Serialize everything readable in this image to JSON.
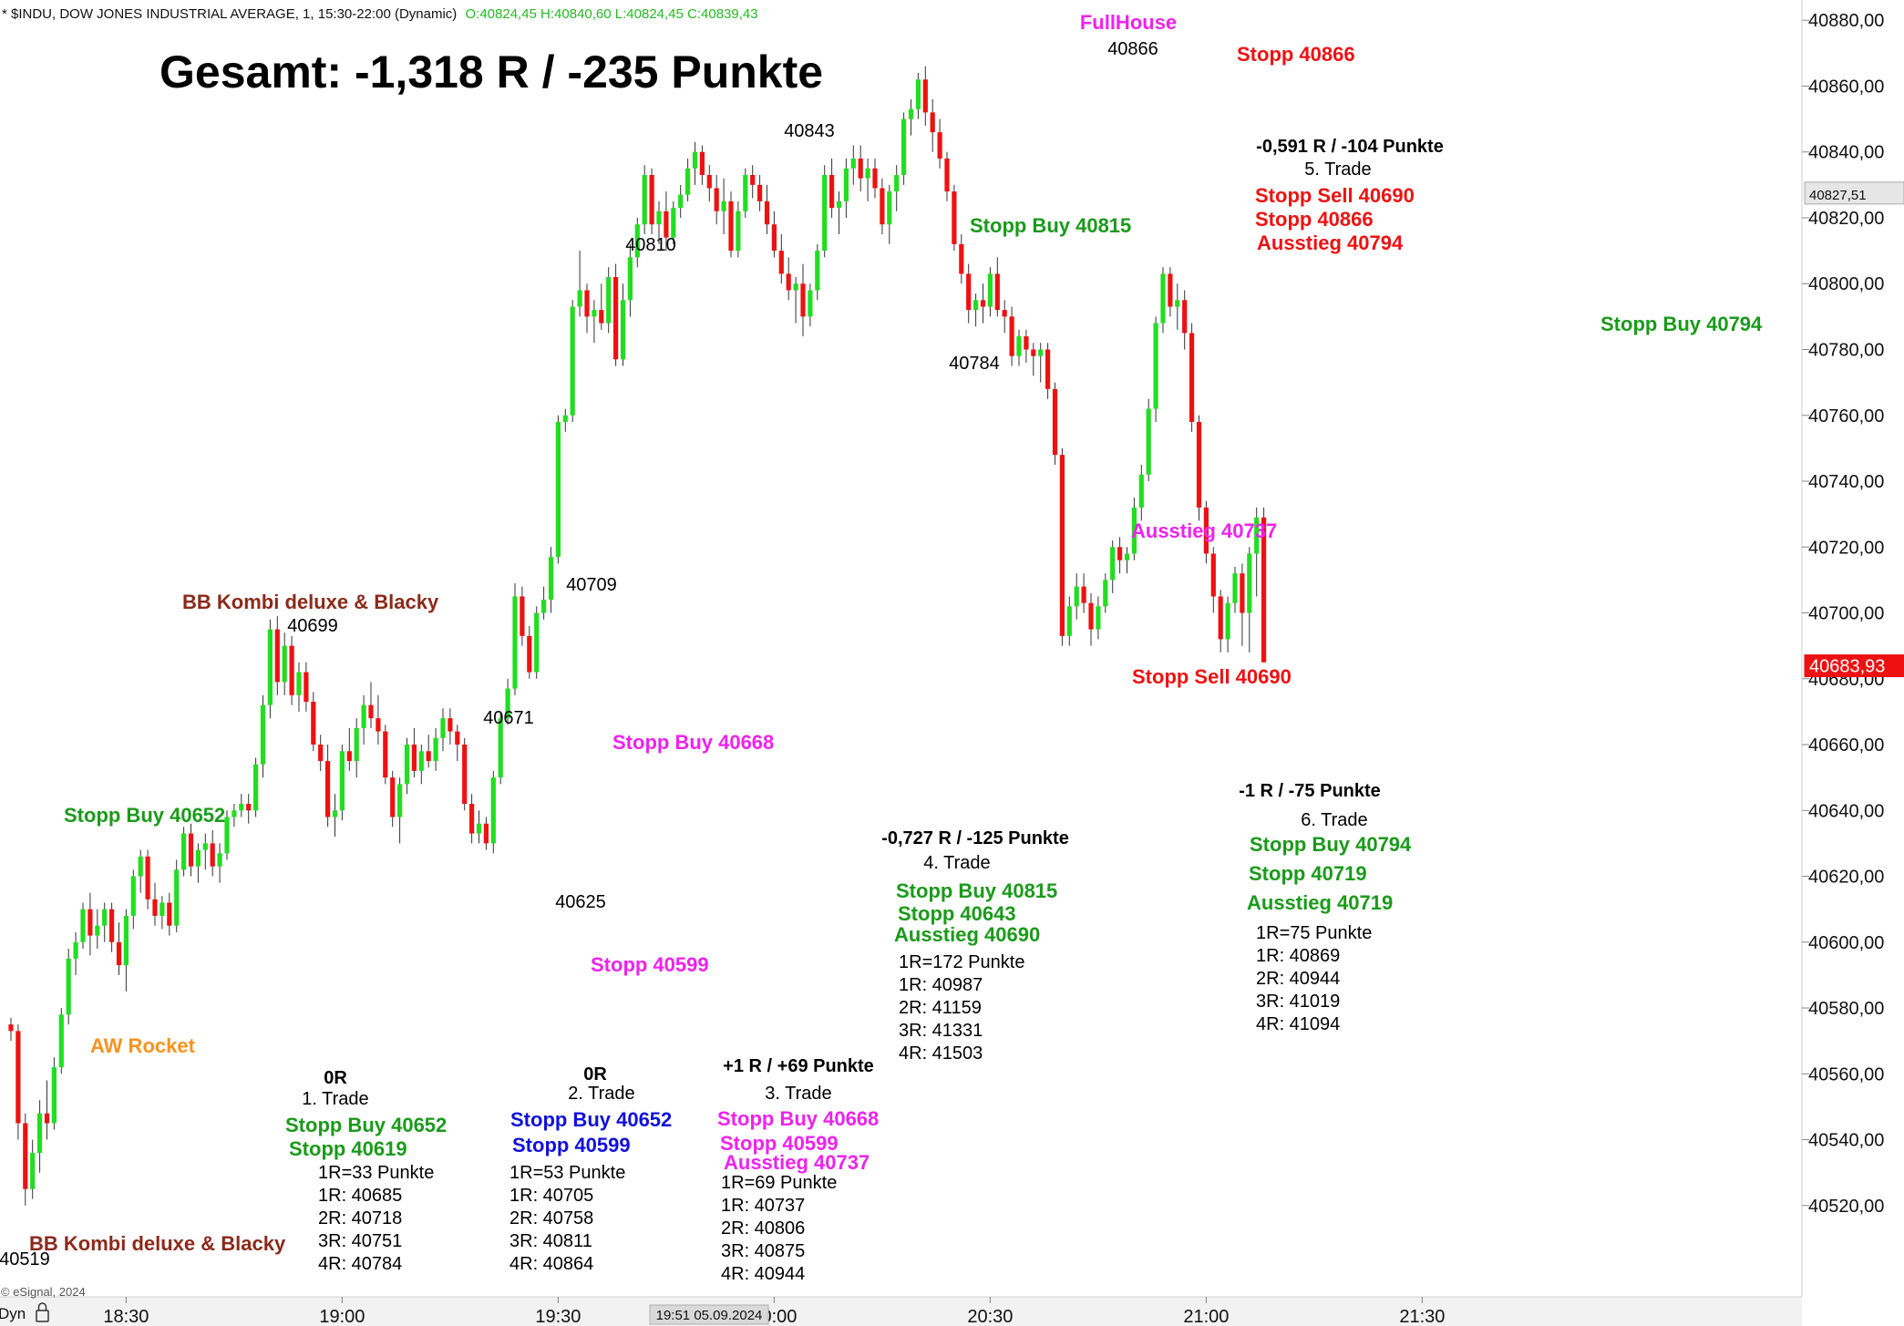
{
  "header": {
    "symbol_line": "* $INDU, DOW JONES INDUSTRIAL AVERAGE, 1, 15:30-22:00 (Dynamic)",
    "ohlc_line": "O:40824,45 H:40840,60 L:40824,45 C:40839,43"
  },
  "footer": {
    "copyright": "© eSignal, 2024",
    "dyn_label": "Dyn",
    "crosshair_time": "19:51 05.09.2024"
  },
  "colors": {
    "up": "#22dd22",
    "down": "#ee1111",
    "green_text": "#1a9a1a",
    "red_text": "#ee1111",
    "magenta": "#ee22ee",
    "blue": "#1010dd",
    "brown": "#8b2a1a",
    "orange": "#f7931e",
    "price_tag": "#ee1111"
  },
  "chart_data": {
    "type": "candlestick",
    "y_axis": {
      "min": 40505,
      "max": 40882,
      "ticks": [
        40520,
        40540,
        40560,
        40580,
        40600,
        40620,
        40640,
        40660,
        40680,
        40700,
        40720,
        40740,
        40760,
        40780,
        40800,
        40820,
        40840,
        40860,
        40880
      ],
      "tick_labels": [
        "40520,00",
        "40540,00",
        "40560,00",
        "40580,00",
        "40600,00",
        "40620,00",
        "40640,00",
        "40660,00",
        "40680,00",
        "40700,00",
        "40720,00",
        "40740,00",
        "40760,00",
        "40780,00",
        "40800,00",
        "40820,00",
        "40840,00",
        "40860,00",
        "40880,00"
      ]
    },
    "x_axis": {
      "tick_labels": [
        "18:30",
        "19:00",
        "19:30",
        "20:00",
        "20:30",
        "21:00",
        "21:30"
      ],
      "tick_minutes": [
        0,
        30,
        60,
        90,
        120,
        150,
        180
      ],
      "start_minute": -16
    },
    "price_tags": [
      {
        "value": 40827.51,
        "label": "40827,51",
        "style": "gray"
      },
      {
        "value": 40683.93,
        "label": "40683,93",
        "style": "red"
      }
    ],
    "candles": [
      [
        40575,
        40577,
        40570,
        40573
      ],
      [
        40573,
        40575,
        40540,
        40545
      ],
      [
        40545,
        40548,
        40520,
        40525
      ],
      [
        40525,
        40540,
        40522,
        40536
      ],
      [
        40536,
        40552,
        40530,
        40548
      ],
      [
        40548,
        40558,
        40540,
        40545
      ],
      [
        40545,
        40565,
        40543,
        40562
      ],
      [
        40562,
        40580,
        40560,
        40578
      ],
      [
        40578,
        40598,
        40575,
        40595
      ],
      [
        40595,
        40603,
        40590,
        40600
      ],
      [
        40600,
        40612,
        40598,
        40610
      ],
      [
        40610,
        40615,
        40596,
        40602
      ],
      [
        40602,
        40610,
        40598,
        40605
      ],
      [
        40605,
        40612,
        40600,
        40610
      ],
      [
        40610,
        40612,
        40597,
        40600
      ],
      [
        40600,
        40606,
        40590,
        40593
      ],
      [
        40593,
        40610,
        40585,
        40608
      ],
      [
        40608,
        40622,
        40604,
        40620
      ],
      [
        40620,
        40628,
        40615,
        40626
      ],
      [
        40626,
        40628,
        40610,
        40613
      ],
      [
        40613,
        40618,
        40605,
        40608
      ],
      [
        40608,
        40614,
        40604,
        40612
      ],
      [
        40612,
        40615,
        40602,
        40605
      ],
      [
        40605,
        40625,
        40603,
        40622
      ],
      [
        40622,
        40635,
        40620,
        40633
      ],
      [
        40633,
        40636,
        40620,
        40623
      ],
      [
        40623,
        40630,
        40618,
        40628
      ],
      [
        40628,
        40633,
        40622,
        40630
      ],
      [
        40630,
        40634,
        40620,
        40623
      ],
      [
        40623,
        40630,
        40618,
        40627
      ],
      [
        40627,
        40640,
        40625,
        40638
      ],
      [
        40638,
        40642,
        40635,
        40640
      ],
      [
        40640,
        40645,
        40638,
        40642
      ],
      [
        40642,
        40645,
        40636,
        40640
      ],
      [
        40640,
        40656,
        40638,
        40654
      ],
      [
        40654,
        40675,
        40650,
        40672
      ],
      [
        40672,
        40698,
        40668,
        40695
      ],
      [
        40695,
        40699,
        40675,
        40679
      ],
      [
        40679,
        40694,
        40675,
        40690
      ],
      [
        40690,
        40693,
        40672,
        40675
      ],
      [
        40675,
        40685,
        40670,
        40682
      ],
      [
        40682,
        40685,
        40670,
        40673
      ],
      [
        40673,
        40676,
        40658,
        40660
      ],
      [
        40660,
        40663,
        40652,
        40655
      ],
      [
        40655,
        40660,
        40635,
        40638
      ],
      [
        40638,
        40645,
        40632,
        40640
      ],
      [
        40640,
        40660,
        40637,
        40658
      ],
      [
        40658,
        40665,
        40652,
        40655
      ],
      [
        40655,
        40668,
        40650,
        40665
      ],
      [
        40665,
        40675,
        40660,
        40672
      ],
      [
        40672,
        40679,
        40665,
        40668
      ],
      [
        40668,
        40675,
        40660,
        40664
      ],
      [
        40664,
        40666,
        40648,
        40650
      ],
      [
        40650,
        40652,
        40635,
        40638
      ],
      [
        40638,
        40650,
        40630,
        40648
      ],
      [
        40648,
        40662,
        40645,
        40660
      ],
      [
        40660,
        40665,
        40650,
        40652
      ],
      [
        40652,
        40660,
        40648,
        40658
      ],
      [
        40658,
        40663,
        40653,
        40655
      ],
      [
        40655,
        40665,
        40652,
        40662
      ],
      [
        40662,
        40671,
        40658,
        40668
      ],
      [
        40668,
        40671,
        40660,
        40664
      ],
      [
        40664,
        40666,
        40655,
        40660
      ],
      [
        40660,
        40662,
        40640,
        40642
      ],
      [
        40642,
        40645,
        40630,
        40633
      ],
      [
        40633,
        40640,
        40630,
        40636
      ],
      [
        40636,
        40638,
        40628,
        40630
      ],
      [
        40630,
        40652,
        40627,
        40650
      ],
      [
        40650,
        40670,
        40648,
        40668
      ],
      [
        40668,
        40680,
        40666,
        40677
      ],
      [
        40677,
        40709,
        40675,
        40705
      ],
      [
        40705,
        40708,
        40690,
        40693
      ],
      [
        40693,
        40696,
        40680,
        40682
      ],
      [
        40682,
        40702,
        40680,
        40700
      ],
      [
        40700,
        40708,
        40698,
        40704
      ],
      [
        40704,
        40720,
        40700,
        40717
      ],
      [
        40717,
        40760,
        40715,
        40758
      ],
      [
        40758,
        40762,
        40755,
        40760
      ],
      [
        40760,
        40795,
        40758,
        40793
      ],
      [
        40793,
        40810,
        40790,
        40798
      ],
      [
        40798,
        40800,
        40785,
        40790
      ],
      [
        40790,
        40795,
        40782,
        40792
      ],
      [
        40792,
        40800,
        40786,
        40788
      ],
      [
        40788,
        40805,
        40785,
        40802
      ],
      [
        40802,
        40806,
        40775,
        40777
      ],
      [
        40777,
        40800,
        40775,
        40795
      ],
      [
        40795,
        40812,
        40790,
        40808
      ],
      [
        40808,
        40820,
        40805,
        40818
      ],
      [
        40818,
        40836,
        40815,
        40833
      ],
      [
        40833,
        40835,
        40815,
        40818
      ],
      [
        40818,
        40825,
        40812,
        40822
      ],
      [
        40822,
        40828,
        40810,
        40814
      ],
      [
        40814,
        40825,
        40812,
        40823
      ],
      [
        40823,
        40830,
        40820,
        40827
      ],
      [
        40827,
        40838,
        40825,
        40835
      ],
      [
        40835,
        40843,
        40830,
        40840
      ],
      [
        40840,
        40842,
        40830,
        40833
      ],
      [
        40833,
        40836,
        40825,
        40829
      ],
      [
        40829,
        40833,
        40818,
        40822
      ],
      [
        40822,
        40832,
        40815,
        40825
      ],
      [
        40825,
        40828,
        40808,
        40810
      ],
      [
        40810,
        40825,
        40808,
        40822
      ],
      [
        40822,
        40835,
        40820,
        40833
      ],
      [
        40833,
        40836,
        40826,
        40830
      ],
      [
        40830,
        40833,
        40822,
        40825
      ],
      [
        40825,
        40830,
        40815,
        40818
      ],
      [
        40818,
        40822,
        40808,
        40810
      ],
      [
        40810,
        40815,
        40800,
        40803
      ],
      [
        40803,
        40808,
        40795,
        40798
      ],
      [
        40798,
        40802,
        40788,
        40800
      ],
      [
        40800,
        40806,
        40784,
        40790
      ],
      [
        40790,
        40800,
        40787,
        40798
      ],
      [
        40798,
        40812,
        40795,
        40810
      ],
      [
        40810,
        40836,
        40808,
        40833
      ],
      [
        40833,
        40838,
        40820,
        40823
      ],
      [
        40823,
        40828,
        40815,
        40825
      ],
      [
        40825,
        40838,
        40820,
        40835
      ],
      [
        40835,
        40842,
        40830,
        40838
      ],
      [
        40838,
        40842,
        40828,
        40832
      ],
      [
        40832,
        40838,
        40825,
        40835
      ],
      [
        40835,
        40838,
        40826,
        40829
      ],
      [
        40829,
        40832,
        40815,
        40818
      ],
      [
        40818,
        40830,
        40812,
        40828
      ],
      [
        40828,
        40836,
        40822,
        40833
      ],
      [
        40833,
        40852,
        40830,
        40850
      ],
      [
        40850,
        40856,
        40845,
        40853
      ],
      [
        40853,
        40864,
        40850,
        40862
      ],
      [
        40862,
        40866,
        40848,
        40852
      ],
      [
        40852,
        40856,
        40840,
        40846
      ],
      [
        40846,
        40850,
        40835,
        40838
      ],
      [
        40838,
        40840,
        40825,
        40828
      ],
      [
        40828,
        40830,
        40810,
        40812
      ],
      [
        40812,
        40815,
        40800,
        40803
      ],
      [
        40803,
        40806,
        40788,
        40792
      ],
      [
        40792,
        40797,
        40787,
        40795
      ],
      [
        40795,
        40800,
        40788,
        40793
      ],
      [
        40793,
        40805,
        40790,
        40803
      ],
      [
        40803,
        40808,
        40790,
        40792
      ],
      [
        40792,
        40795,
        40785,
        40790
      ],
      [
        40790,
        40793,
        40775,
        40778
      ],
      [
        40778,
        40786,
        40775,
        40784
      ],
      [
        40784,
        40786,
        40776,
        40780
      ],
      [
        40780,
        40782,
        40772,
        40778
      ],
      [
        40778,
        40782,
        40770,
        40780
      ],
      [
        40780,
        40782,
        40765,
        40768
      ],
      [
        40768,
        40770,
        40745,
        40748
      ],
      [
        40748,
        40750,
        40690,
        40693
      ],
      [
        40693,
        40705,
        40690,
        40702
      ],
      [
        40702,
        40712,
        40698,
        40708
      ],
      [
        40708,
        40712,
        40700,
        40703
      ],
      [
        40703,
        40706,
        40690,
        40695
      ],
      [
        40695,
        40705,
        40692,
        40702
      ],
      [
        40702,
        40712,
        40700,
        40710
      ],
      [
        40710,
        40722,
        40706,
        40720
      ],
      [
        40720,
        40723,
        40712,
        40716
      ],
      [
        40716,
        40720,
        40712,
        40718
      ],
      [
        40718,
        40735,
        40716,
        40732
      ],
      [
        40732,
        40745,
        40728,
        40742
      ],
      [
        40742,
        40765,
        40740,
        40762
      ],
      [
        40762,
        40790,
        40758,
        40788
      ],
      [
        40788,
        40805,
        40785,
        40803
      ],
      [
        40803,
        40805,
        40790,
        40793
      ],
      [
        40793,
        40800,
        40786,
        40795
      ],
      [
        40795,
        40798,
        40780,
        40785
      ],
      [
        40785,
        40788,
        40755,
        40758
      ],
      [
        40758,
        40760,
        40728,
        40732
      ],
      [
        40732,
        40734,
        40715,
        40718
      ],
      [
        40718,
        40720,
        40700,
        40705
      ],
      [
        40705,
        40707,
        40688,
        40692
      ],
      [
        40692,
        40705,
        40688,
        40703
      ],
      [
        40703,
        40714,
        40700,
        40712
      ],
      [
        40712,
        40715,
        40690,
        40700
      ],
      [
        40700,
        40720,
        40688,
        40718
      ],
      [
        40718,
        40732,
        40705,
        40729
      ],
      [
        40729,
        40732,
        40685,
        40685
      ]
    ]
  },
  "annotations": {
    "gesamt": "Gesamt: -1,318 R / -235 Punkte",
    "fullhouse": "FullHouse",
    "price_40866": "40866",
    "stopp_top": "Stopp 40866",
    "price_40843": "40843",
    "price_40810": "40810",
    "price_40784": "40784",
    "price_40709": "40709",
    "price_40699": "40699",
    "price_40671": "40671",
    "price_40625": "40625",
    "price_40519": "40519",
    "stopp_buy_40815": "Stopp Buy 40815",
    "stopp_buy_40794": "Stopp Buy 40794",
    "ausstieg_40737": "Ausstieg 40737",
    "stopp_sell_40690": "Stopp Sell 40690",
    "stopp_buy_40668": "Stopp Buy 40668",
    "stopp_buy_40652": "Stopp Buy 40652",
    "stopp_40599": "Stopp 40599",
    "aw_rocket": "AW Rocket",
    "bb_kombi": "BB Kombi deluxe & Blacky",
    "trade1": {
      "r": "0R",
      "name": "1. Trade",
      "l1": "Stopp Buy 40652",
      "l2": "Stopp 40619",
      "lines": [
        "1R=33 Punkte",
        "1R: 40685",
        "2R: 40718",
        "3R: 40751",
        "4R: 40784"
      ]
    },
    "trade2": {
      "r": "0R",
      "name": "2. Trade",
      "l1": "Stopp Buy 40652",
      "l2": "Stopp 40599",
      "lines": [
        "1R=53 Punkte",
        "1R: 40705",
        "2R: 40758",
        "3R: 40811",
        "4R: 40864"
      ]
    },
    "trade3": {
      "r": "+1 R / +69 Punkte",
      "name": "3. Trade",
      "l1": "Stopp Buy 40668",
      "l2": "Stopp 40599",
      "l3": "Ausstieg 40737",
      "lines": [
        "1R=69 Punkte",
        "1R: 40737",
        "2R: 40806",
        "3R: 40875",
        "4R: 40944"
      ]
    },
    "trade4": {
      "r": "-0,727 R / -125 Punkte",
      "name": "4. Trade",
      "l1": "Stopp Buy 40815",
      "l2": "Stopp 40643",
      "l3": "Ausstieg 40690",
      "lines": [
        "1R=172 Punkte",
        "1R: 40987",
        "2R: 41159",
        "3R: 41331",
        "4R: 41503"
      ]
    },
    "trade5": {
      "r": "-0,591 R / -104 Punkte",
      "name": "5. Trade",
      "l1": "Stopp Sell 40690",
      "l2": "Stopp 40866",
      "l3": "Ausstieg 40794"
    },
    "trade6": {
      "r": "-1 R / -75 Punkte",
      "name": "6. Trade",
      "l1": "Stopp Buy 40794",
      "l2": "Stopp 40719",
      "l3": "Ausstieg 40719",
      "lines": [
        "1R=75 Punkte",
        "1R: 40869",
        "2R: 40944",
        "3R: 41019",
        "4R: 41094"
      ]
    }
  }
}
